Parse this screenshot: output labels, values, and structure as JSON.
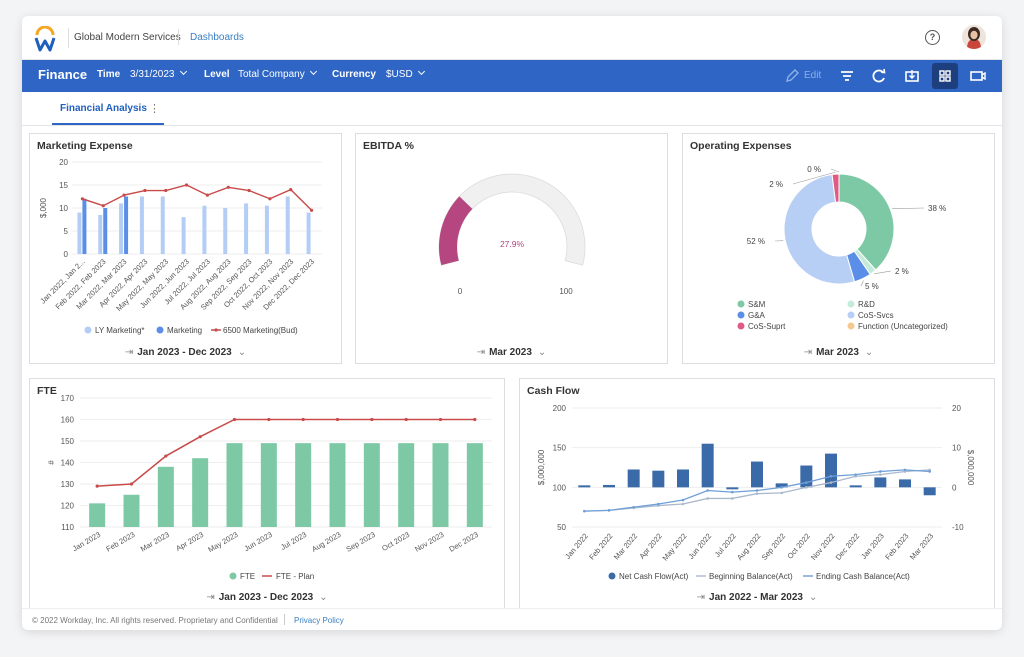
{
  "header": {
    "org": "Global Modern Services",
    "dashboards": "Dashboards",
    "help": "?"
  },
  "bar": {
    "title": "Finance",
    "time_label": "Time",
    "time_value": "3/31/2023",
    "level_label": "Level",
    "level_value": "Total Company",
    "currency_label": "Currency",
    "currency_value": "$USD",
    "edit": "Edit"
  },
  "tabs": {
    "active": "Financial Analysis",
    "more": "⋮"
  },
  "panels": {
    "marketing": {
      "title": "Marketing Expense",
      "footer": "Jan 2023 - Dec 2023"
    },
    "ebitda": {
      "title": "EBITDA %",
      "footer": "Mar 2023"
    },
    "opex": {
      "title": "Operating Expenses",
      "footer": "Mar 2023"
    },
    "fte": {
      "title": "FTE",
      "footer": "Jan 2023 - Dec 2023"
    },
    "cash": {
      "title": "Cash Flow",
      "footer": "Jan 2022 - Mar 2023"
    }
  },
  "footer": {
    "copyright": "© 2022 Workday, Inc. All rights reserved. Proprietary and Confidential",
    "privacy": "Privacy Policy"
  },
  "colors": {
    "brand_blue": "#2f66c5",
    "nav_dark": "#1e3f7d",
    "marketing_ly": "#b3cdf5",
    "marketing": "#5b8ee6",
    "budget": "#c94a4a",
    "gauge": "#b5467f",
    "fte": "#7dc9a6",
    "cash_bar": "#3a6aa8"
  },
  "chart_data": [
    {
      "id": "marketing",
      "type": "bar",
      "ylabel": "$,000",
      "ylim": [
        0,
        20
      ],
      "yticks": [
        0,
        5,
        10,
        15,
        20
      ],
      "categories": [
        "Jan 2022, Jan 2...",
        "Feb 2022, Feb 2023",
        "Mar 2022, Mar 2023",
        "Apr 2022, Apr 2023",
        "May 2022, May 2023",
        "Jun 2022, Jun 2023",
        "Jul 2022, Jul 2023",
        "Aug 2022, Aug 2023",
        "Sep 2022, Sep 2023",
        "Oct 2022, Oct 2023",
        "Nov 2022, Nov 2023",
        "Dec 2022, Dec 2023"
      ],
      "series": [
        {
          "name": "LY Marketing*",
          "type": "bar",
          "values": [
            9,
            8.5,
            11,
            12.5,
            12.5,
            8,
            10.5,
            10,
            11,
            10.5,
            12.5,
            9
          ]
        },
        {
          "name": "Marketing",
          "type": "bar",
          "values": [
            12,
            10,
            12.5,
            null,
            null,
            null,
            null,
            null,
            null,
            null,
            null,
            null
          ]
        },
        {
          "name": "6500 Marketing(Bud)",
          "type": "line",
          "values": [
            12,
            10.5,
            12.8,
            13.8,
            13.8,
            15,
            12.8,
            14.5,
            13.8,
            12,
            14,
            9.5
          ]
        }
      ]
    },
    {
      "id": "ebitda",
      "type": "gauge",
      "value": 27.9,
      "label": "27.9%",
      "min": 0,
      "max": 100,
      "min_label": "0",
      "max_label": "100"
    },
    {
      "id": "opex",
      "type": "pie",
      "labels": [
        "S&M",
        "R&D",
        "G&A",
        "CoS-Svcs",
        "CoS-Suprt",
        "Function (Uncategorized)"
      ],
      "values": [
        38,
        2,
        5,
        52,
        2,
        0
      ],
      "value_labels": [
        "38 %",
        "2 %",
        "5 %",
        "52 %",
        "2 %",
        "0 %"
      ],
      "colors": [
        "#7dc9a6",
        "#c4ebd9",
        "#5b8ee6",
        "#b7cff4",
        "#e05a86",
        "#f3c98d"
      ]
    },
    {
      "id": "fte",
      "type": "bar",
      "ylim": [
        110,
        170
      ],
      "yticks": [
        110,
        120,
        130,
        140,
        150,
        160,
        170
      ],
      "ylabel": "#",
      "categories": [
        "Jan 2023",
        "Feb 2023",
        "Mar 2023",
        "Apr 2023",
        "May 2023",
        "Jun 2023",
        "Jul 2023",
        "Aug 2023",
        "Sep 2023",
        "Oct 2023",
        "Nov 2023",
        "Dec 2023"
      ],
      "series": [
        {
          "name": "FTE",
          "type": "bar",
          "values": [
            121,
            125,
            138,
            142,
            149,
            149,
            149,
            149,
            149,
            149,
            149,
            149
          ]
        },
        {
          "name": "FTE - Plan",
          "type": "line",
          "values": [
            129,
            130,
            143,
            152,
            160,
            160,
            160,
            160,
            160,
            160,
            160,
            160
          ]
        }
      ]
    },
    {
      "id": "cash",
      "type": "bar",
      "ylabel": "$,000,000",
      "ylabel_right": "$,000,000",
      "ylim": [
        50,
        200
      ],
      "yticks": [
        50,
        100,
        150,
        200
      ],
      "ylim_right": [
        -10,
        20
      ],
      "yticks_right": [
        -10,
        0,
        10,
        20
      ],
      "categories": [
        "Jan 2022",
        "Feb 2022",
        "Mar 2022",
        "Apr 2022",
        "May 2022",
        "Jun 2022",
        "Jul 2022",
        "Aug 2022",
        "Sep 2022",
        "Oct 2022",
        "Nov 2022",
        "Dec 2022",
        "Jan 2023",
        "Feb 2023",
        "Mar 2023"
      ],
      "series": [
        {
          "name": "Net Cash Flow(Act)",
          "type": "bar",
          "axis": "right",
          "values": [
            0.5,
            0.6,
            4.5,
            4.2,
            4.5,
            11,
            -0.5,
            6.5,
            1,
            5.5,
            8.5,
            0.5,
            2.5,
            2,
            -2
          ]
        },
        {
          "name": "Beginning Balance(Act)",
          "type": "line",
          "axis": "left",
          "values": [
            70,
            71,
            74,
            77,
            79,
            86,
            86,
            92,
            93,
            100,
            106,
            114,
            116,
            120,
            122
          ]
        },
        {
          "name": "Ending Cash Balance(Act)",
          "type": "line",
          "axis": "left",
          "values": [
            70,
            71,
            75,
            79,
            84,
            96,
            94,
            96,
            100,
            106,
            114,
            116,
            120,
            122,
            120
          ]
        }
      ]
    }
  ]
}
